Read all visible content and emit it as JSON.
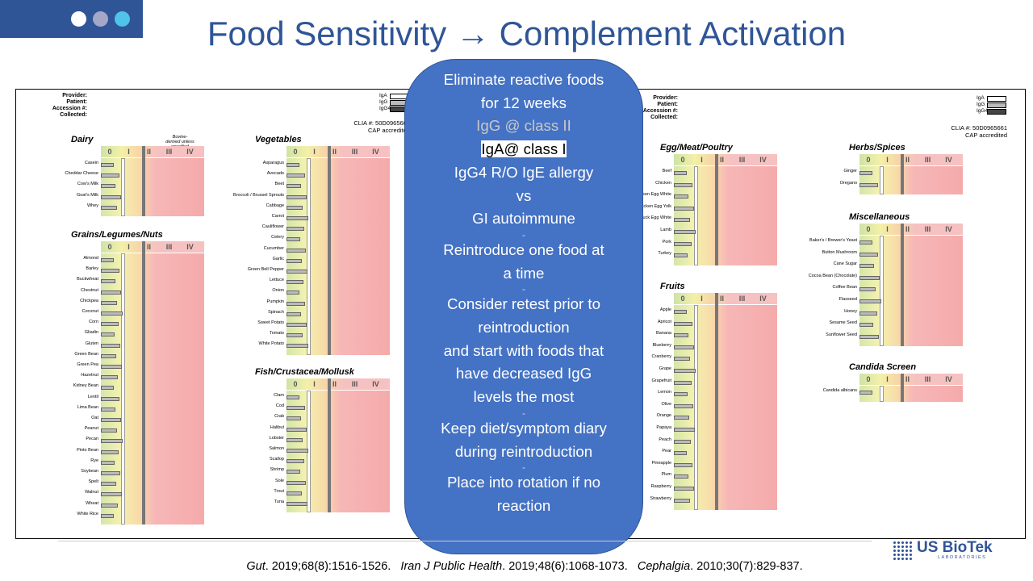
{
  "slide": {
    "title": "Food Sensitivity → Complement Activation",
    "accent": "#2f5597",
    "dot_colors": [
      "#ffffff",
      "#a6a6c8",
      "#4fc3e8"
    ]
  },
  "report_left": {
    "header_labels": [
      "Provider:",
      "Patient:",
      "Accession #:",
      "Collected:"
    ],
    "legend": [
      "IgA",
      "IgG",
      "IgG4"
    ],
    "clia": "CLIA #: 50D0965661",
    "cap": "CAP accredited",
    "dairy_note": "Bovine-derived unless specified"
  },
  "report_right": {
    "header_labels": [
      "Provider:",
      "Patient:",
      "Accession #:",
      "Collected:"
    ],
    "legend": [
      "IgA",
      "IgG",
      "IgG4"
    ],
    "clia": "CLIA #: 50D0965661",
    "cap": "CAP accredited"
  },
  "class_labels": [
    "0",
    "I",
    "II",
    "III",
    "IV"
  ],
  "groups": [
    {
      "title": "Dairy",
      "foods": [
        "Casein",
        "Cheddar Cheese",
        "Cow's Milk",
        "Goat's Milk",
        "Whey"
      ]
    },
    {
      "title": "Grains/Legumes/Nuts",
      "foods": [
        "Almond",
        "Barley",
        "Buckwheat",
        "Chestnut",
        "Chickpea",
        "Coconut",
        "Corn",
        "Gliadin",
        "Gluten",
        "Green Bean",
        "Green Pea",
        "Hazelnut",
        "Kidney Bean",
        "Lentil",
        "Lima Bean",
        "Oat",
        "Peanut",
        "Pecan",
        "Pinto Bean",
        "Rye",
        "Soybean",
        "Spelt",
        "Walnut",
        "Wheat",
        "White Rice"
      ]
    },
    {
      "title": "Vegetables",
      "foods": [
        "Asparagus",
        "Avocado",
        "Beet",
        "Broccoli / Brussel Sprouts",
        "Cabbage",
        "Carrot",
        "Cauliflower",
        "Celery",
        "Cucumber",
        "Garlic",
        "Green Bell Pepper",
        "Lettuce",
        "Onion",
        "Pumpkin",
        "Spinach",
        "Sweet Potato",
        "Tomato",
        "White Potato"
      ]
    },
    {
      "title": "Fish/Crustacea/Mollusk",
      "foods": [
        "Clam",
        "Cod",
        "Crab",
        "Halibut",
        "Lobster",
        "Salmon",
        "Scallop",
        "Shrimp",
        "Sole",
        "Trout",
        "Tuna"
      ]
    },
    {
      "title": "Egg/Meat/Poultry",
      "foods": [
        "Beef",
        "Chicken",
        "Chicken Egg White",
        "Chicken Egg Yolk",
        "Duck Egg White",
        "Lamb",
        "Pork",
        "Turkey"
      ]
    },
    {
      "title": "Fruits",
      "foods": [
        "Apple",
        "Apricot",
        "Banana",
        "Blueberry",
        "Cranberry",
        "Grape",
        "Grapefruit",
        "Lemon",
        "Olive",
        "Orange",
        "Papaya",
        "Peach",
        "Pear",
        "Pineapple",
        "Plum",
        "Raspberry",
        "Strawberry"
      ]
    },
    {
      "title": "Herbs/Spices",
      "foods": [
        "Ginger",
        "Oregano"
      ]
    },
    {
      "title": "Miscellaneous",
      "foods": [
        "Baker's / Brewer's Yeast",
        "Button Mushroom",
        "Cane Sugar",
        "Cocoa Bean (Chocolate)",
        "Coffee Bean",
        "Flaxseed",
        "Honey",
        "Sesame Seed",
        "Sunflower Seed"
      ]
    },
    {
      "title": "Candida Screen",
      "foods": [
        "Candida albicans"
      ]
    }
  ],
  "bubble": {
    "lines": [
      {
        "text": "Eliminate reactive foods",
        "style": "normal"
      },
      {
        "text": "for 12 weeks",
        "style": "normal"
      },
      {
        "text": "IgG @ class II",
        "style": "grey"
      },
      {
        "text": "IgA@ class I",
        "style": "highlight"
      },
      {
        "text": "IgG4 R/O IgE allergy",
        "style": "normal"
      },
      {
        "text": "vs",
        "style": "normal"
      },
      {
        "text": "GI autoimmune",
        "style": "normal"
      },
      {
        "text": "-",
        "style": "sep"
      },
      {
        "text": "Reintroduce one food at",
        "style": "normal"
      },
      {
        "text": "a time",
        "style": "normal"
      },
      {
        "text": "-",
        "style": "sep"
      },
      {
        "text": "Consider retest prior to",
        "style": "normal"
      },
      {
        "text": "reintroduction",
        "style": "normal"
      },
      {
        "text": "and start with foods that",
        "style": "normal"
      },
      {
        "text": "have decreased IgG",
        "style": "normal"
      },
      {
        "text": "levels the most",
        "style": "normal"
      },
      {
        "text": "-",
        "style": "sep"
      },
      {
        "text": "Keep diet/symptom diary",
        "style": "normal"
      },
      {
        "text": "during reintroduction",
        "style": "normal"
      },
      {
        "text": "-",
        "style": "sep"
      },
      {
        "text": "Place into rotation if no",
        "style": "normal"
      },
      {
        "text": "reaction",
        "style": "normal"
      }
    ]
  },
  "citation": {
    "j1": "Gut",
    "r1": ". 2019;68(8):1516-1526.",
    "j2": "Iran J Public Health",
    "r2": ". 2019;48(6):1068-1073.",
    "j3": "Cephalgia",
    "r3": ". 2010;30(7):829-837."
  },
  "logo": {
    "brand": "US BioTek",
    "sub": "LABORATORIES"
  }
}
